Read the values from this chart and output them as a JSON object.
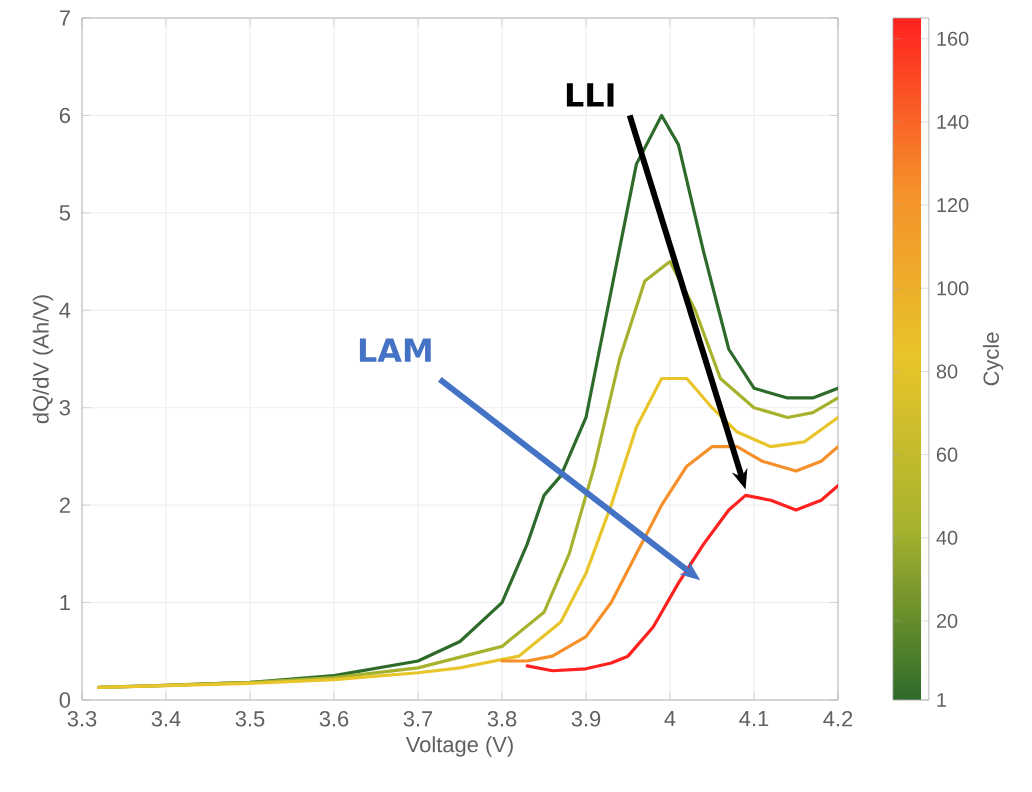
{
  "chart_data": {
    "type": "line",
    "xlabel": "Voltage (V)",
    "ylabel": "dQ/dV (Ah/V)",
    "clabel": "Cycle",
    "xlim": [
      3.3,
      4.2
    ],
    "ylim": [
      0,
      7
    ],
    "xticks": [
      3.3,
      3.4,
      3.5,
      3.6,
      3.7,
      3.8,
      3.9,
      4,
      4.1,
      4.2
    ],
    "yticks": [
      0,
      1,
      2,
      3,
      4,
      5,
      6,
      7
    ],
    "clim": [
      1,
      165
    ],
    "cticks": [
      1,
      20,
      40,
      60,
      80,
      100,
      120,
      140,
      160
    ],
    "grid": true,
    "marker": "none",
    "line_style": "solid",
    "series": [
      {
        "color": "#2e6b2a",
        "x": [
          3.32,
          3.4,
          3.5,
          3.6,
          3.7,
          3.75,
          3.8,
          3.83,
          3.85,
          3.87,
          3.9,
          3.93,
          3.96,
          3.99,
          4.01,
          4.04,
          4.07,
          4.1,
          4.14,
          4.17,
          4.2
        ],
        "values": [
          0.13,
          0.15,
          0.18,
          0.25,
          0.4,
          0.6,
          1.0,
          1.6,
          2.1,
          2.3,
          2.9,
          4.2,
          5.5,
          6.0,
          5.7,
          4.6,
          3.6,
          3.2,
          3.1,
          3.1,
          3.2
        ]
      },
      {
        "color": "#a6b22e",
        "x": [
          3.32,
          3.4,
          3.5,
          3.6,
          3.7,
          3.8,
          3.85,
          3.88,
          3.91,
          3.94,
          3.97,
          4.0,
          4.03,
          4.06,
          4.1,
          4.14,
          4.17,
          4.2
        ],
        "values": [
          0.13,
          0.15,
          0.18,
          0.23,
          0.33,
          0.55,
          0.9,
          1.5,
          2.4,
          3.5,
          4.3,
          4.5,
          4.0,
          3.3,
          3.0,
          2.9,
          2.95,
          3.1
        ]
      },
      {
        "color": "#e8c52a",
        "x": [
          3.32,
          3.5,
          3.6,
          3.7,
          3.75,
          3.82,
          3.87,
          3.9,
          3.93,
          3.96,
          3.99,
          4.02,
          4.05,
          4.08,
          4.12,
          4.16,
          4.2
        ],
        "values": [
          0.13,
          0.17,
          0.21,
          0.28,
          0.33,
          0.45,
          0.8,
          1.3,
          2.0,
          2.8,
          3.3,
          3.3,
          3.0,
          2.75,
          2.6,
          2.65,
          2.9
        ]
      },
      {
        "color": "#f5902a",
        "x": [
          3.8,
          3.83,
          3.86,
          3.9,
          3.93,
          3.96,
          3.99,
          4.02,
          4.05,
          4.08,
          4.11,
          4.15,
          4.18,
          4.2
        ],
        "values": [
          0.4,
          0.4,
          0.45,
          0.65,
          1.0,
          1.5,
          2.0,
          2.4,
          2.6,
          2.6,
          2.45,
          2.35,
          2.45,
          2.6
        ]
      },
      {
        "color": "#ff2020",
        "x": [
          3.83,
          3.86,
          3.9,
          3.93,
          3.95,
          3.98,
          4.01,
          4.04,
          4.07,
          4.09,
          4.12,
          4.15,
          4.18,
          4.2
        ],
        "values": [
          0.35,
          0.3,
          0.32,
          0.38,
          0.45,
          0.75,
          1.2,
          1.6,
          1.95,
          2.1,
          2.05,
          1.95,
          2.05,
          2.2
        ]
      }
    ],
    "annotations": [
      "LLI",
      "LAM"
    ]
  }
}
